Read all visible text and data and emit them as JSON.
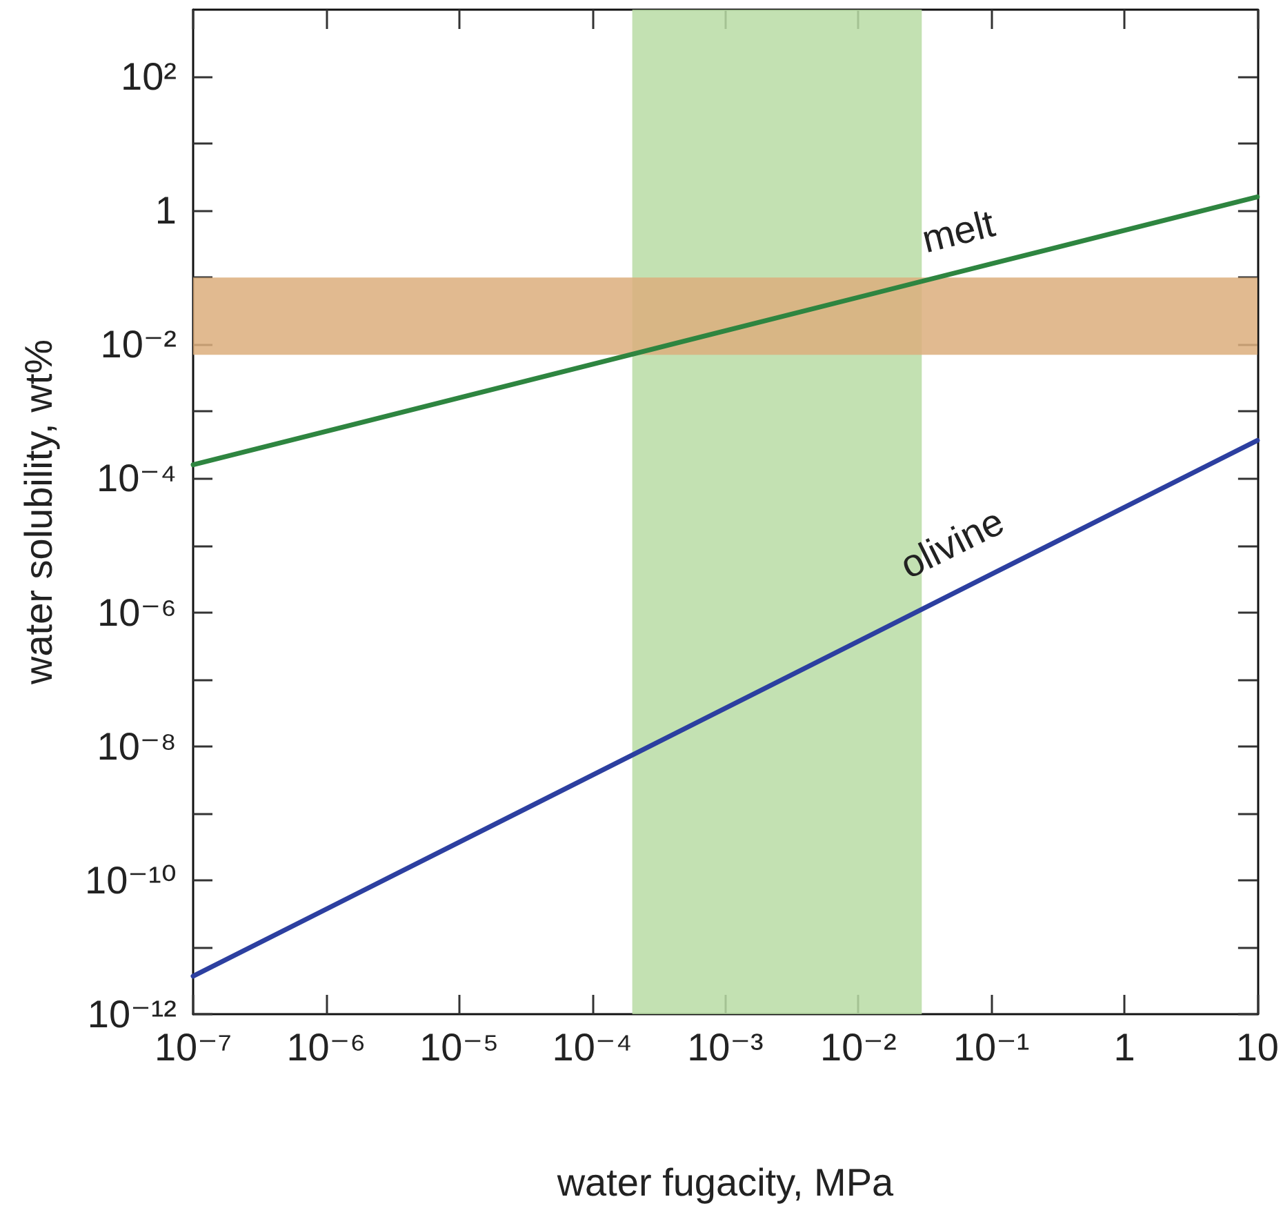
{
  "chart_data": {
    "type": "line",
    "xlabel": "water fugacity, MPa",
    "ylabel": "water solubility, wt%",
    "series": [
      {
        "name": "melt",
        "color": "#2e8540",
        "x": [
          1e-07,
          0.1,
          10
        ],
        "values": [
          0.00016,
          0.16,
          1.6
        ]
      },
      {
        "name": "olivine",
        "color": "#2c3fa0",
        "x": [
          1e-07,
          0.1,
          10
        ],
        "values": [
          3.7e-12,
          3.7e-06,
          0.00037
        ]
      }
    ],
    "log": "xy",
    "xlim": [
      1e-07,
      10
    ],
    "xticks": [
      {
        "value": 1e-07,
        "label": "10⁻⁷"
      },
      {
        "value": 1e-06,
        "label": "10⁻⁶"
      },
      {
        "value": 1e-05,
        "label": "10⁻⁵"
      },
      {
        "value": 0.0001,
        "label": "10⁻⁴"
      },
      {
        "value": 0.001,
        "label": "10⁻³"
      },
      {
        "value": 0.01,
        "label": "10⁻²"
      },
      {
        "value": 0.1,
        "label": "10⁻¹"
      },
      1,
      10
    ],
    "ylim": [
      1e-12,
      1000
    ],
    "yticks": [
      {
        "value": 1e-12,
        "label": "10⁻¹²"
      },
      {
        "value": 1e-11,
        "label": null
      },
      {
        "value": 1e-10,
        "label": "10⁻¹⁰"
      },
      {
        "value": 1e-09,
        "label": null
      },
      {
        "value": 1e-08,
        "label": "10⁻⁸"
      },
      {
        "value": 1e-07,
        "label": null
      },
      {
        "value": 1e-06,
        "label": "10⁻⁶"
      },
      {
        "value": 1e-05,
        "label": null
      },
      {
        "value": 0.0001,
        "label": "10⁻⁴"
      },
      {
        "value": 0.001,
        "label": null
      },
      {
        "value": 0.01,
        "label": "10⁻²"
      },
      {
        "value": 0.1,
        "label": null
      },
      1,
      {
        "value": 10,
        "label": null
      },
      {
        "value": 100,
        "label": "10²"
      }
    ],
    "bands": [
      {
        "axis": "x",
        "from": 0.0002,
        "to": 0.03,
        "color": "#b8dca4"
      },
      {
        "axis": "y",
        "from": 0.007,
        "to": 0.1,
        "color": "#dcae7c"
      }
    ],
    "marker": "none",
    "line_style": "solid",
    "grid": false,
    "legend": false
  }
}
